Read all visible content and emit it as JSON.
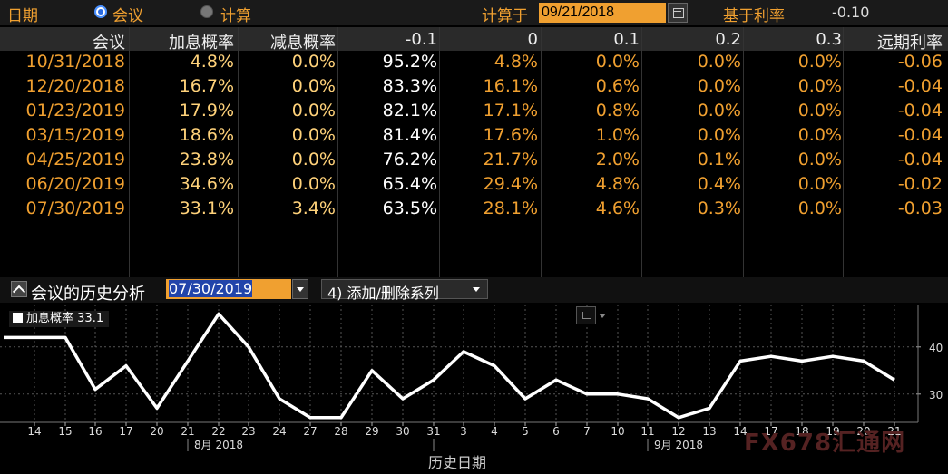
{
  "toolbar": {
    "date_label": "日期",
    "radio_meeting": "会议",
    "radio_calc": "计算",
    "calc_on_label": "计算于",
    "calc_date": "09/21/2018",
    "base_rate_label": "基于利率",
    "base_rate_value": "-0.10"
  },
  "table": {
    "headers": [
      "会议",
      "加息概率",
      "减息概率",
      "-0.1",
      "0",
      "0.1",
      "0.2",
      "0.3",
      "远期利率"
    ],
    "rows": [
      [
        "10/31/2018",
        "4.8%",
        "0.0%",
        "95.2%",
        "4.8%",
        "0.0%",
        "0.0%",
        "0.0%",
        "-0.06"
      ],
      [
        "12/20/2018",
        "16.7%",
        "0.0%",
        "83.3%",
        "16.1%",
        "0.6%",
        "0.0%",
        "0.0%",
        "-0.04"
      ],
      [
        "01/23/2019",
        "17.9%",
        "0.0%",
        "82.1%",
        "17.1%",
        "0.8%",
        "0.0%",
        "0.0%",
        "-0.04"
      ],
      [
        "03/15/2019",
        "18.6%",
        "0.0%",
        "81.4%",
        "17.6%",
        "1.0%",
        "0.0%",
        "0.0%",
        "-0.04"
      ],
      [
        "04/25/2019",
        "23.8%",
        "0.0%",
        "76.2%",
        "21.7%",
        "2.0%",
        "0.1%",
        "0.0%",
        "-0.04"
      ],
      [
        "06/20/2019",
        "34.6%",
        "0.0%",
        "65.4%",
        "29.4%",
        "4.8%",
        "0.4%",
        "0.0%",
        "-0.02"
      ],
      [
        "07/30/2019",
        "33.1%",
        "3.4%",
        "63.5%",
        "28.1%",
        "4.6%",
        "0.3%",
        "0.0%",
        "-0.03"
      ]
    ]
  },
  "analysis": {
    "title": "会议的历史分析",
    "meeting_date": "07/30/2019",
    "series_button": "添加/删除系列",
    "series_button_prefix": "4)"
  },
  "chart_data": {
    "type": "line",
    "series": [
      {
        "name": "加息概率",
        "legend_value": "33.1",
        "values": [
          42,
          42,
          31,
          36,
          27,
          37,
          47,
          40,
          29,
          25,
          25,
          35,
          29,
          33,
          39,
          36,
          29,
          33,
          30,
          30,
          29,
          25,
          27,
          37,
          38,
          37,
          38,
          37,
          33
        ]
      }
    ],
    "x": [
      "14",
      "15",
      "16",
      "17",
      "20",
      "21",
      "22",
      "23",
      "24",
      "27",
      "28",
      "29",
      "30",
      "31",
      "3",
      "4",
      "5",
      "6",
      "7",
      "10",
      "11",
      "12",
      "13",
      "14",
      "17",
      "18",
      "19",
      "20",
      "21"
    ],
    "month_labels": [
      "8月 2018",
      "9月 2018"
    ],
    "xlabel": "历史日期",
    "y_ticks": [
      "40",
      "30"
    ],
    "ylim": [
      24,
      49
    ],
    "grid": true,
    "legend_position": "top-left",
    "line_color": "#ffffff"
  },
  "watermark": "FX678汇通网"
}
